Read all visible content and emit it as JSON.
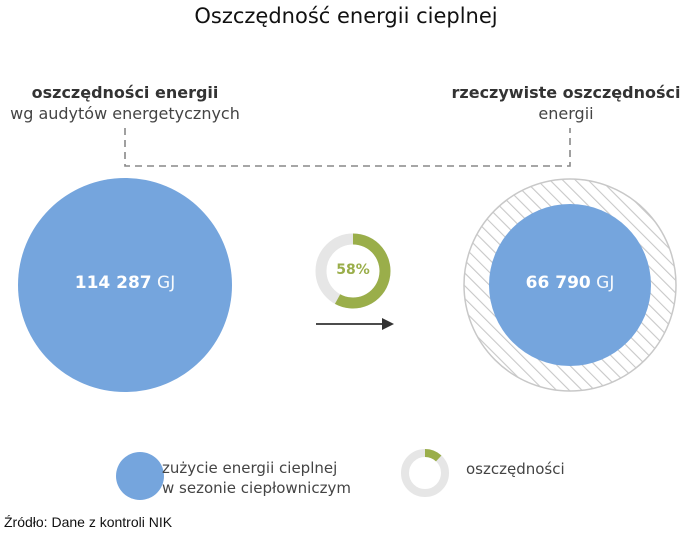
{
  "title": "Oszczędność energii cieplnej",
  "left": {
    "heading_bold": "oszczędności energii",
    "heading_normal": "wg audytów energetycznych",
    "value": "114 287",
    "unit": "GJ"
  },
  "right": {
    "heading_bold": "rzeczywiste oszczędności",
    "heading_normal": "energii",
    "value": "66 790",
    "unit": "GJ"
  },
  "ratio": {
    "label": "58%",
    "fraction": 0.58
  },
  "legend": {
    "consumption_line1": "zużycie energii cieplnej",
    "consumption_line2": "w sezonie ciepłowniczym",
    "savings": "oszczędności",
    "savings_fraction": 0.12
  },
  "source": "Źródło: Dane z kontroli NIK",
  "colors": {
    "bubble": "#75A5DD",
    "accent": "#9AAE4A",
    "ring_bg": "#E6E6E6",
    "hatch": "#C8C8C8"
  }
}
